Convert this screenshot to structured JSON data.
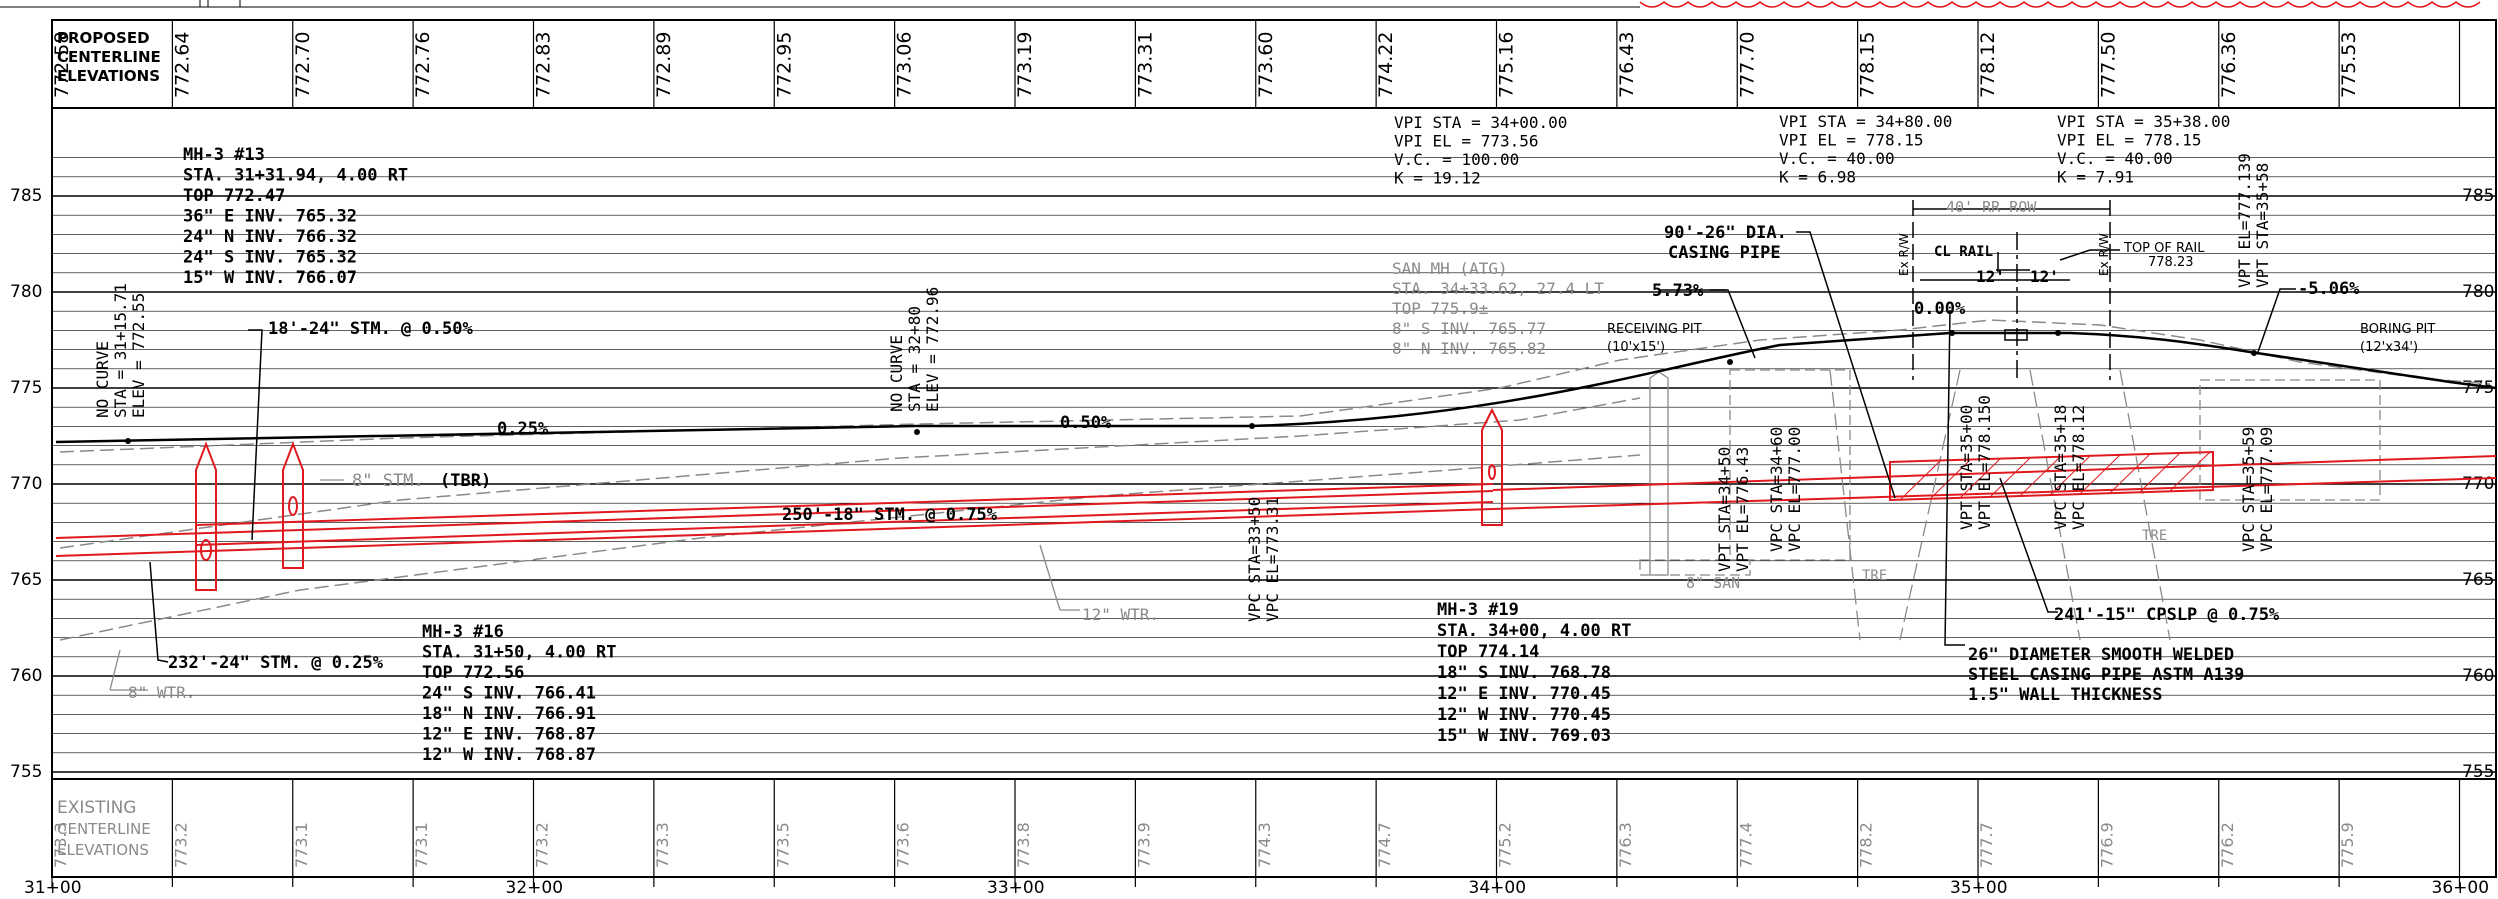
{
  "header_label": [
    "PROPOSED",
    "CENTERLINE",
    "ELEVATIONS"
  ],
  "footer_label": [
    "EXISTING",
    "CENTERLINE",
    "ELEVATIONS"
  ],
  "proposed_elevations": [
    "772.58",
    "772.64",
    "772.70",
    "772.76",
    "772.83",
    "772.89",
    "772.95",
    "773.06",
    "773.19",
    "773.31",
    "773.60",
    "774.22",
    "775.16",
    "776.43",
    "777.70",
    "778.15",
    "778.12",
    "777.50",
    "776.36",
    "775.53"
  ],
  "existing_elevations": [
    "773.3",
    "773.2",
    "773.1",
    "773.1",
    "773.2",
    "773.3",
    "773.5",
    "773.6",
    "773.8",
    "773.9",
    "774.3",
    "774.7",
    "775.2",
    "776.3",
    "777.4",
    "778.2",
    "777.7",
    "776.9",
    "776.2",
    "775.9"
  ],
  "elevation_ticks": [
    "785",
    "780",
    "775",
    "770",
    "765",
    "760",
    "755"
  ],
  "station_labels": [
    "31+00",
    "32+00",
    "33+00",
    "34+00",
    "35+00",
    "36+00"
  ],
  "notes": {
    "mh13": [
      "MH-3 #13",
      "STA. 31+31.94, 4.00 RT",
      "TOP 772.47",
      "36\" E INV. 765.32",
      "24\" N INV. 766.32",
      "24\" S INV. 765.32",
      "15\" W INV. 766.07"
    ],
    "mh16": [
      "MH-3 #16",
      "STA. 31+50, 4.00 RT",
      "TOP 772.56",
      "24\" S INV. 766.41",
      "18\" N INV. 766.91",
      "12\" E INV. 768.87",
      "12\" W INV. 768.87"
    ],
    "mh19": [
      "MH-3 #19",
      "STA. 34+00, 4.00 RT",
      "TOP 774.14",
      "18\" S INV. 768.78",
      "12\" E INV. 770.45",
      "12\" W INV. 770.45",
      "15\" W INV. 769.03"
    ],
    "san_mh": [
      "SAN MH (ATG)",
      "STA. 34+33.62, 27.4 LT",
      "TOP 775.9±",
      "8\" S INV. 765.77",
      "8\" N INV. 765.82"
    ],
    "vpi1": [
      "VPI STA = 34+00.00",
      "VPI EL = 773.56",
      "V.C. = 100.00",
      "K = 19.12"
    ],
    "vpi2": [
      "VPI STA = 34+80.00",
      "VPI EL = 778.15",
      "V.C. = 40.00",
      "K = 6.98"
    ],
    "vpi3": [
      "VPI STA = 35+38.00",
      "VPI EL = 778.15",
      "V.C. = 40.00",
      "K = 7.91"
    ],
    "no_curve_1": [
      "NO CURVE",
      "STA = 31+15.71",
      "ELEV = 772.55"
    ],
    "no_curve_2": [
      "NO CURVE",
      "STA = 32+80",
      "ELEV = 772.96"
    ],
    "vpc_33": [
      "VPC STA=33+50",
      "VPC EL=773.31"
    ],
    "vpt_34": [
      "VPT STA=34+50",
      "VPT EL=776.43"
    ],
    "vpc_34": [
      "VPC STA=34+60",
      "VPC EL=777.00"
    ],
    "vpt_35a": [
      "VPT STA=35+00",
      "VPT EL=778.150"
    ],
    "vpc_35b": [
      "VPC STA=35+18",
      "VPC EL=778.12"
    ],
    "vpc_35c": [
      "VPC STA=35+59",
      "VPC EL=777.09"
    ],
    "vpt_35d": [
      "VPT EL=777.139",
      "VPT STA=35+58"
    ],
    "stm_18": "18'-24\" STM. @ 0.50%",
    "stm_232": "232'-24\" STM. @ 0.25%",
    "stm_250": "250'-18\" STM. @ 0.75%",
    "stm_8": "8\" STM.",
    "tbr": "(TBR)",
    "wtr_8": "8\" WTR.",
    "wtr_12": "12\" WTR.",
    "san_8": "8\" SAN",
    "grade_025": "0.25%",
    "grade_050": "0.50%",
    "grade_573": "5.73%",
    "grade_000": "0.00%",
    "grade_506": "-5.06%",
    "casing_1": "90'-26\" DIA.",
    "casing_2": "CASING PIPE",
    "receiving_pit": [
      "RECEIVING PIT",
      "(10'x15')"
    ],
    "boring_pit": [
      "BORING PIT",
      "(12'x34')"
    ],
    "rr_row": "40' RR ROW",
    "cl_rail": "CL RAIL",
    "top_of_rail": [
      "TOP OF RAIL",
      "778.23"
    ],
    "dim_12": "12'",
    "ex_rw": "Ex R/W",
    "cpslp": "241'-15\" CPSLP @ 0.75%",
    "casing_note": [
      "26\" DIAMETER SMOOTH WELDED",
      "STEEL CASING PIPE ASTM A139",
      "1.5\" WALL THICKNESS"
    ],
    "tre": "TRE"
  },
  "colors": {
    "pipe": "#e0191f",
    "existing": "#8a8a8a",
    "line": "#000000"
  }
}
